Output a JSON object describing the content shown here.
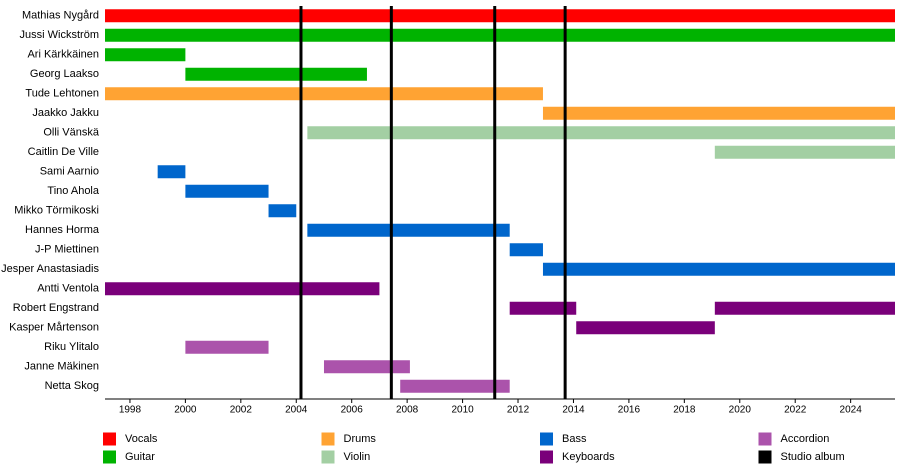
{
  "chart_data": {
    "type": "timeline",
    "xlim": [
      1997.1,
      2025.6
    ],
    "xticks": [
      1998,
      2000,
      2002,
      2004,
      2006,
      2008,
      2010,
      2012,
      2014,
      2016,
      2018,
      2020,
      2022,
      2024
    ],
    "roles": [
      {
        "name": "Vocals",
        "color": "#ff0000"
      },
      {
        "name": "Guitar",
        "color": "#00b300"
      },
      {
        "name": "Drums",
        "color": "#ffa333"
      },
      {
        "name": "Violin",
        "color": "#a3cfa3"
      },
      {
        "name": "Bass",
        "color": "#0066cc"
      },
      {
        "name": "Keyboards",
        "color": "#7a007a"
      },
      {
        "name": "Accordion",
        "color": "#ab53ab"
      }
    ],
    "album_label": "Studio album",
    "album_color": "#000000",
    "albums": [
      2004.17,
      2007.43,
      2011.16,
      2013.7
    ],
    "members": [
      {
        "name": "Mathias Nygård",
        "spans": [
          {
            "role": "Vocals",
            "start": 1997.1,
            "end": 2025.6
          }
        ]
      },
      {
        "name": "Jussi Wickström",
        "spans": [
          {
            "role": "Guitar",
            "start": 1997.1,
            "end": 2025.6
          }
        ]
      },
      {
        "name": "Ari Kärkkäinen",
        "spans": [
          {
            "role": "Guitar",
            "start": 1997.1,
            "end": 2000
          }
        ]
      },
      {
        "name": "Georg Laakso",
        "spans": [
          {
            "role": "Guitar",
            "start": 2000,
            "end": 2006.55
          }
        ]
      },
      {
        "name": "Tude Lehtonen",
        "spans": [
          {
            "role": "Drums",
            "start": 1997.1,
            "end": 2012.9
          }
        ]
      },
      {
        "name": "Jaakko Jakku",
        "spans": [
          {
            "role": "Drums",
            "start": 2012.9,
            "end": 2025.6
          }
        ]
      },
      {
        "name": "Olli Vänskä",
        "spans": [
          {
            "role": "Violin",
            "start": 2004.4,
            "end": 2025.6
          }
        ]
      },
      {
        "name": "Caitlin De Ville",
        "spans": [
          {
            "role": "Violin",
            "start": 2019.1,
            "end": 2025.6
          }
        ]
      },
      {
        "name": "Sami Aarnio",
        "spans": [
          {
            "role": "Bass",
            "start": 1999,
            "end": 2000
          }
        ]
      },
      {
        "name": "Tino Ahola",
        "spans": [
          {
            "role": "Bass",
            "start": 2000,
            "end": 2003
          }
        ]
      },
      {
        "name": "Mikko Törmikoski",
        "spans": [
          {
            "role": "Bass",
            "start": 2003,
            "end": 2004
          }
        ]
      },
      {
        "name": "Hannes Horma",
        "spans": [
          {
            "role": "Bass",
            "start": 2004.4,
            "end": 2011.7
          }
        ]
      },
      {
        "name": "J-P Miettinen",
        "spans": [
          {
            "role": "Bass",
            "start": 2011.7,
            "end": 2012.9
          }
        ]
      },
      {
        "name": "Jesper Anastasiadis",
        "spans": [
          {
            "role": "Bass",
            "start": 2012.9,
            "end": 2025.6
          }
        ]
      },
      {
        "name": "Antti Ventola",
        "spans": [
          {
            "role": "Keyboards",
            "start": 1997.1,
            "end": 2007
          }
        ]
      },
      {
        "name": "Robert Engstrand",
        "spans": [
          {
            "role": "Keyboards",
            "start": 2011.7,
            "end": 2014.1
          },
          {
            "role": "Keyboards",
            "start": 2019.1,
            "end": 2025.6
          }
        ]
      },
      {
        "name": "Kasper Mårtenson",
        "spans": [
          {
            "role": "Keyboards",
            "start": 2014.1,
            "end": 2019.1
          }
        ]
      },
      {
        "name": "Riku Ylitalo",
        "spans": [
          {
            "role": "Accordion",
            "start": 2000,
            "end": 2003
          }
        ]
      },
      {
        "name": "Janne Mäkinen",
        "spans": [
          {
            "role": "Accordion",
            "start": 2005,
            "end": 2008.1
          }
        ]
      },
      {
        "name": "Netta Skog",
        "spans": [
          {
            "role": "Accordion",
            "start": 2007.75,
            "end": 2011.7
          }
        ]
      }
    ]
  }
}
